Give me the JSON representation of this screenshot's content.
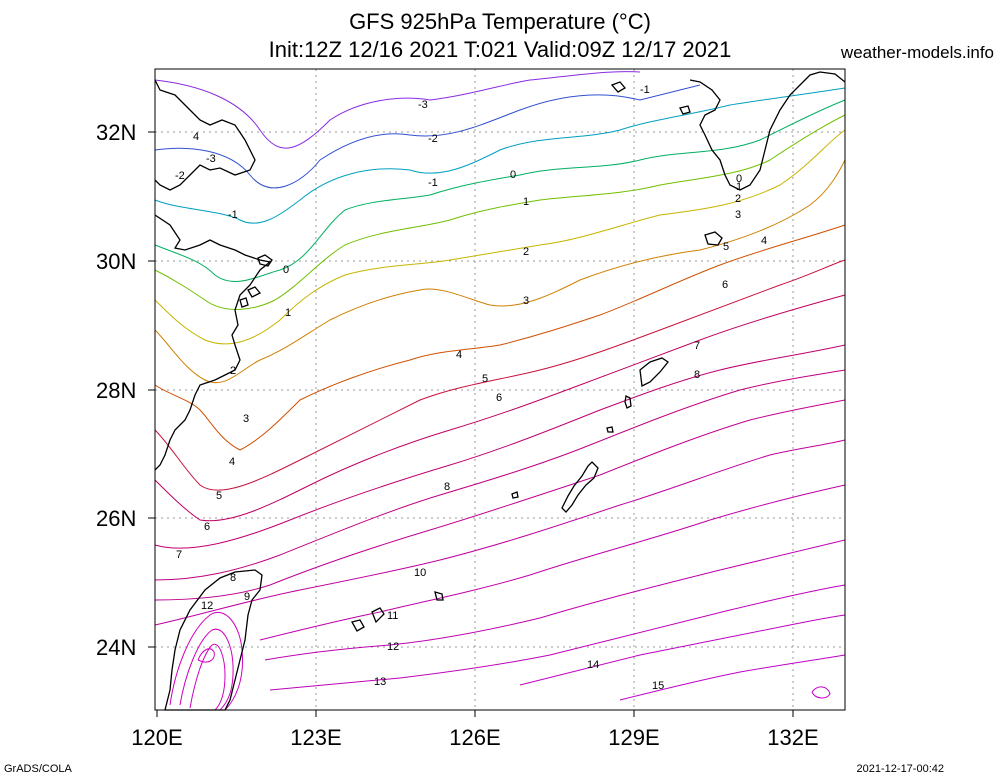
{
  "header": {
    "title_line1": "GFS 925hPa Temperature (°C)",
    "title_line2": "Init:12Z 12/16 2021 T:021 Valid:09Z 12/17 2021",
    "site": "weather-models.info"
  },
  "footer": {
    "left": "GrADS/COLA",
    "right": "2021-12-17-00:42"
  },
  "axes": {
    "lat_ticks": [
      "32N",
      "30N",
      "28N",
      "26N",
      "24N"
    ],
    "lon_ticks": [
      "120E",
      "123E",
      "126E",
      "129E",
      "132E"
    ]
  },
  "contours": [
    {
      "level": "-3",
      "color": "#8a2be2"
    },
    {
      "level": "-2",
      "color": "#3050d0"
    },
    {
      "level": "-1",
      "color": "#00a0c0"
    },
    {
      "level": "0",
      "color": "#00b060"
    },
    {
      "level": "1",
      "color": "#70c000"
    },
    {
      "level": "2",
      "color": "#c8b400"
    },
    {
      "level": "3",
      "color": "#d08000"
    },
    {
      "level": "4",
      "color": "#d05000"
    },
    {
      "level": "5",
      "color": "#c8103a"
    },
    {
      "level": "6",
      "color": "#c00060"
    },
    {
      "level": "7",
      "color": "#c00070"
    },
    {
      "level": "8",
      "color": "#c00080"
    },
    {
      "level": "9",
      "color": "#c00090"
    },
    {
      "level": "10",
      "color": "#c000a0"
    },
    {
      "level": "11",
      "color": "#c000a8"
    },
    {
      "level": "12",
      "color": "#c000b0"
    },
    {
      "level": "13",
      "color": "#c000b8"
    },
    {
      "level": "14",
      "color": "#c000c0"
    },
    {
      "level": "15",
      "color": "#c000c8"
    }
  ]
}
